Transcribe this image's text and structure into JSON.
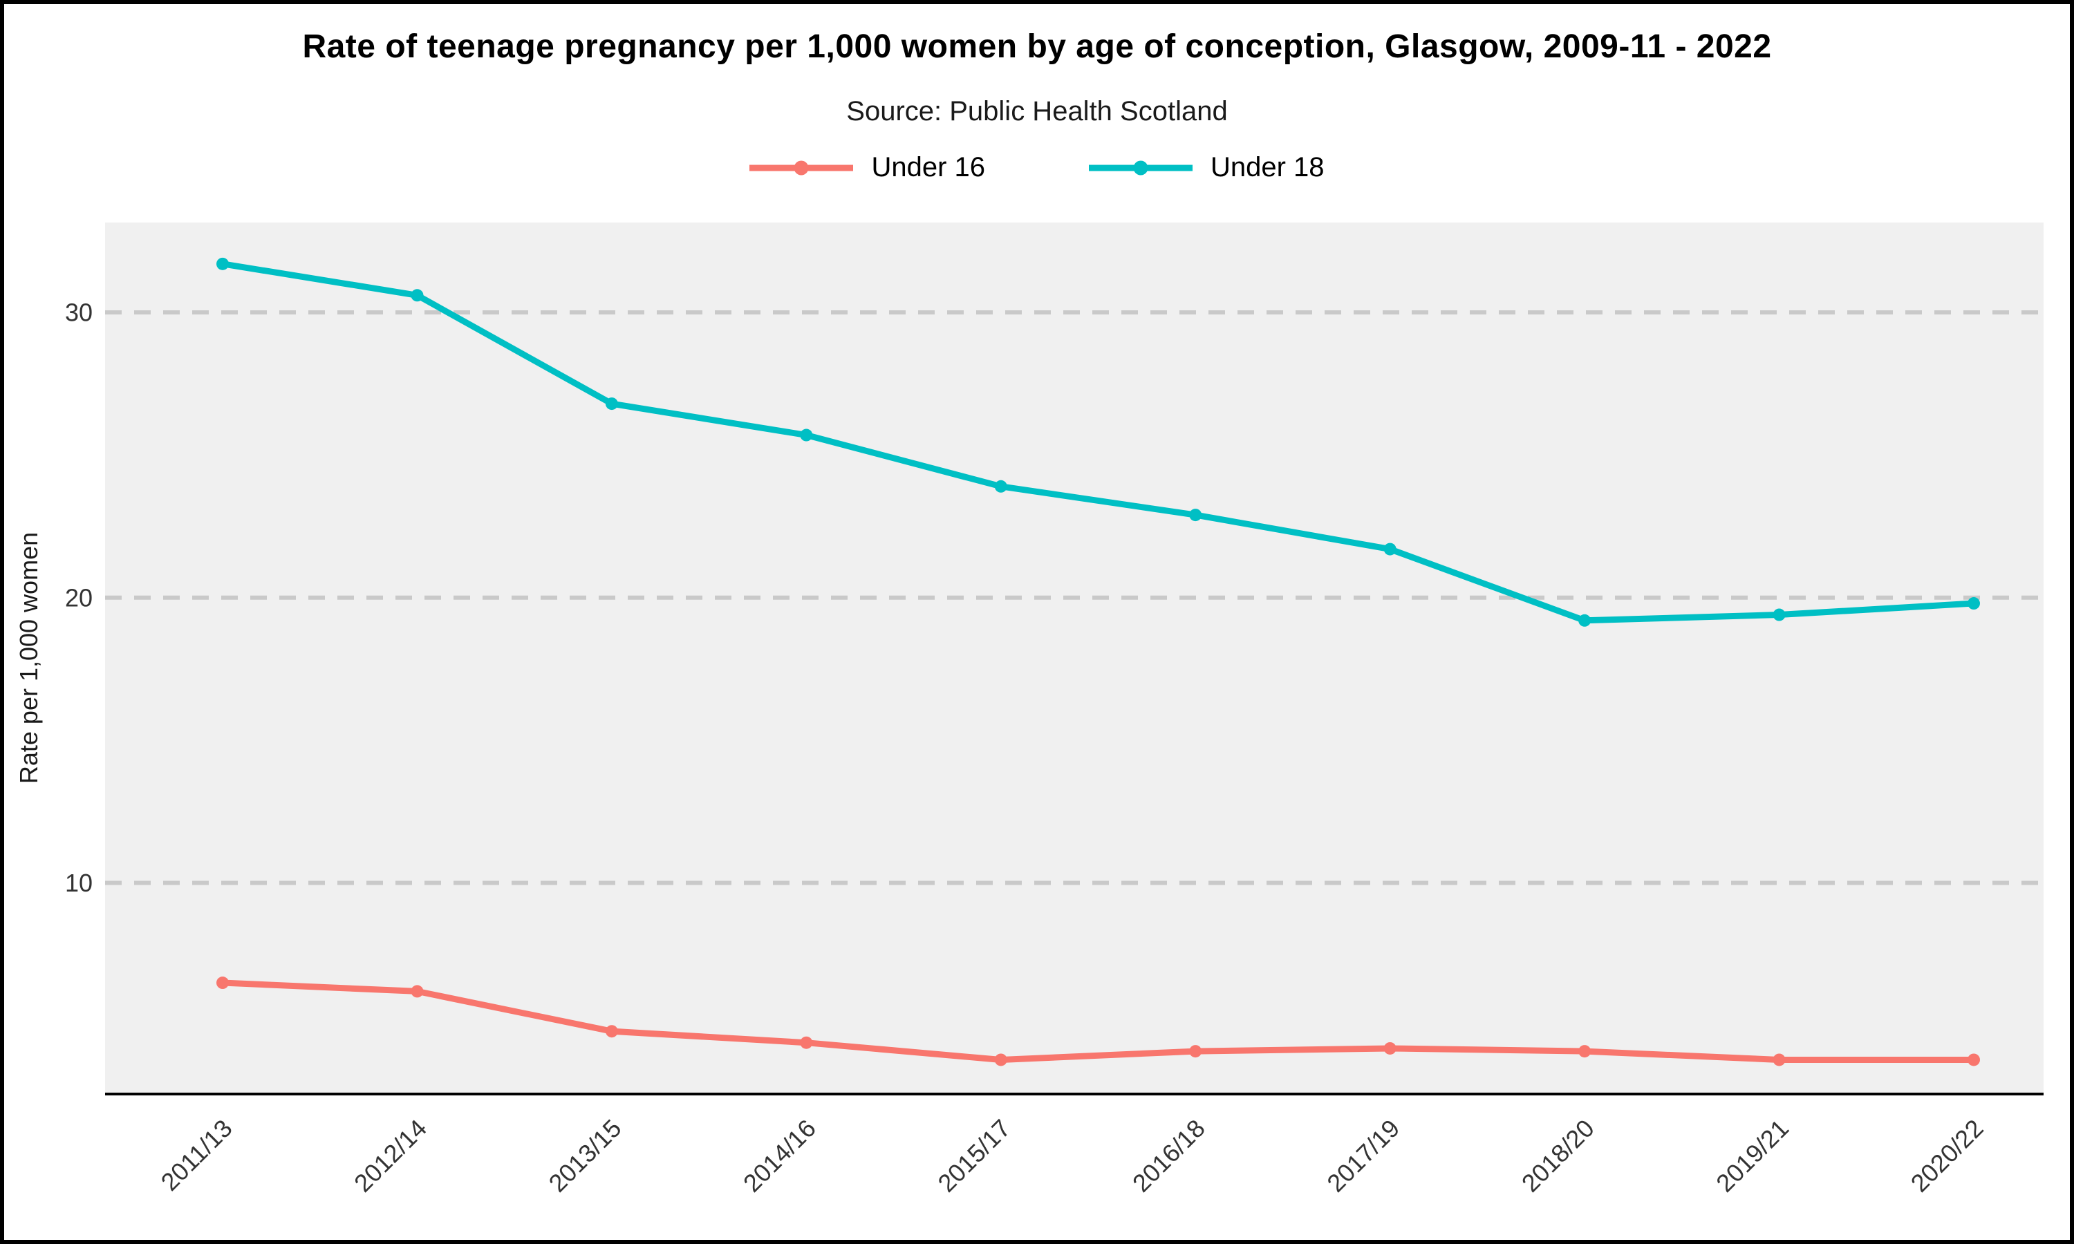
{
  "title": "Rate of teenage pregnancy per 1,000 women by age of conception, Glasgow, 2009-11 - 2022",
  "subtitle": "Source: Public Health Scotland",
  "legend": [
    {
      "label": "Under 16",
      "color": "#F8766D"
    },
    {
      "label": "Under 18",
      "color": "#00BFC4"
    }
  ],
  "chart_data": {
    "type": "line",
    "title": "Rate of teenage pregnancy per 1,000 women by age of conception, Glasgow, 2009-11 - 2022",
    "subtitle": "Source: Public Health Scotland",
    "categories": [
      "2011/13",
      "2012/14",
      "2013/15",
      "2014/16",
      "2015/17",
      "2016/18",
      "2017/19",
      "2018/20",
      "2019/21",
      "2020/22"
    ],
    "series": [
      {
        "name": "Under 16",
        "color": "#F8766D",
        "values": [
          6.5,
          6.2,
          4.8,
          4.4,
          3.8,
          4.1,
          4.2,
          4.1,
          3.8,
          3.8
        ]
      },
      {
        "name": "Under 18",
        "color": "#00BFC4",
        "values": [
          31.7,
          30.6,
          26.8,
          25.7,
          23.9,
          22.9,
          21.7,
          19.2,
          19.4,
          19.8
        ]
      }
    ],
    "xlabel": "",
    "ylabel": "Rate per 1,000 women",
    "yticks": [
      10,
      20,
      30
    ],
    "ylim": [
      2.6,
      33.15
    ],
    "grid": "horizontal-dashed",
    "legend_position": "top",
    "panel_background": "#F0F0F0",
    "grid_color": "#C9C9C9",
    "axis_text_color": "#333333",
    "axis_line_color": "#000000"
  }
}
